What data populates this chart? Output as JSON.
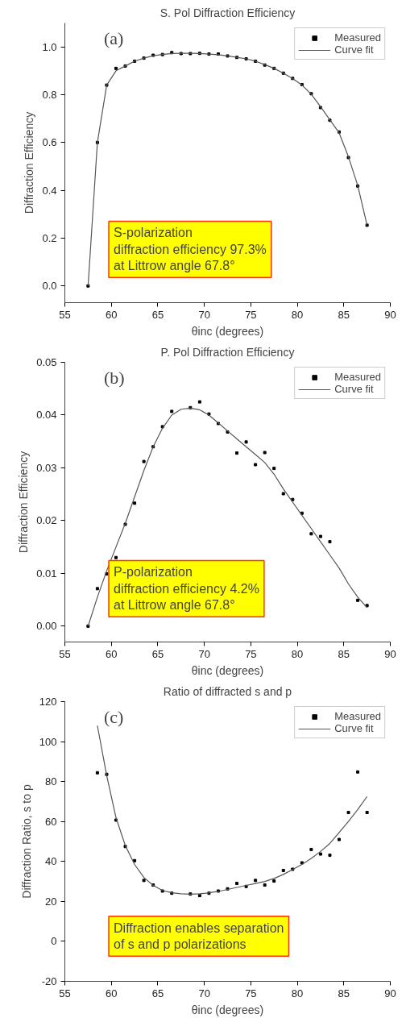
{
  "chart_data": [
    {
      "type": "scatter",
      "title": "S. Pol Diffraction Efficiency",
      "xlabel": "θinc (degrees)",
      "ylabel": "Diffraction Efficiency",
      "annotations": [
        "(a)",
        "S-polarization\ndiffraction efficiency 97.3%\nat Littrow angle 67.8°"
      ],
      "x": [
        57.5,
        58.5,
        59.5,
        60.5,
        61.5,
        62.5,
        63.5,
        64.5,
        65.5,
        66.5,
        67.5,
        68.5,
        69.5,
        70.5,
        71.5,
        72.5,
        73.5,
        74.5,
        75.5,
        76.5,
        77.5,
        78.5,
        79.5,
        80.5,
        81.5,
        82.5,
        83.5,
        84.5,
        85.5,
        86.5,
        87.5
      ],
      "series": [
        {
          "name": "Measured",
          "marker": "square",
          "color": "#000000",
          "values": [
            0.0,
            0.6,
            0.84,
            0.91,
            0.92,
            0.94,
            0.953,
            0.965,
            0.968,
            0.976,
            0.972,
            0.972,
            0.973,
            0.97,
            0.97,
            0.962,
            0.956,
            0.95,
            0.94,
            0.924,
            0.91,
            0.89,
            0.868,
            0.842,
            0.804,
            0.746,
            0.693,
            0.644,
            0.537,
            0.418,
            0.254
          ]
        },
        {
          "name": "Curve fit",
          "type": "line",
          "marker": "none",
          "color": "#555555",
          "values": [
            0.0,
            0.6,
            0.84,
            0.9,
            0.92,
            0.94,
            0.953,
            0.963,
            0.968,
            0.972,
            0.973,
            0.973,
            0.972,
            0.97,
            0.967,
            0.962,
            0.956,
            0.95,
            0.94,
            0.926,
            0.91,
            0.89,
            0.867,
            0.84,
            0.802,
            0.75,
            0.695,
            0.64,
            0.54,
            0.42,
            0.254
          ]
        }
      ],
      "xlim": [
        55,
        90
      ],
      "xticks": [
        55,
        60,
        65,
        70,
        75,
        80,
        85,
        90
      ],
      "ylim": [
        -0.07,
        1.1
      ],
      "yticks": [
        {
          "value": 0,
          "label": "0.0"
        },
        {
          "value": 0.2,
          "label": "0.2"
        },
        {
          "value": 0.4,
          "label": "0.4"
        },
        {
          "value": 0.6,
          "label": "0.6"
        },
        {
          "value": 0.8,
          "label": "0.8"
        },
        {
          "value": 1,
          "label": "1.0"
        }
      ],
      "grid": false,
      "legend": "top right"
    },
    {
      "type": "scatter",
      "title": "P. Pol Diffraction Efficiency",
      "xlabel": "θinc (degrees)",
      "ylabel": "Diffraction Efficiency",
      "annotations": [
        "(b)",
        "P-polarization\ndiffraction efficiency 4.2%\nat Littrow angle 67.8°"
      ],
      "x": [
        57.5,
        58.5,
        59.5,
        60.5,
        61.5,
        62.5,
        63.5,
        64.5,
        65.5,
        66.5,
        67.5,
        68.5,
        69.5,
        70.5,
        71.5,
        72.5,
        73.5,
        74.5,
        75.5,
        76.5,
        77.5,
        78.5,
        79.5,
        80.5,
        81.5,
        82.5,
        83.5,
        84.5,
        85.5,
        86.5,
        87.5
      ],
      "series": [
        {
          "name": "Measured",
          "marker": "square",
          "color": "#000000",
          "values": [
            0.0,
            0.0071,
            0.0099,
            0.013,
            0.0193,
            0.0233,
            0.0312,
            0.034,
            0.0378,
            0.0407,
            null,
            0.0414,
            0.0425,
            0.0402,
            0.0384,
            0.0368,
            0.0328,
            0.0349,
            0.0306,
            0.0329,
            0.0299,
            0.0251,
            0.024,
            0.0214,
            0.0175,
            0.017,
            0.016,
            null,
            null,
            0.0049,
            0.0039
          ]
        },
        {
          "name": "Curve fit",
          "type": "line",
          "marker": "none",
          "color": "#555555",
          "values": [
            0.0,
            0.0055,
            0.0105,
            0.015,
            0.0195,
            0.0245,
            0.0295,
            0.034,
            0.0375,
            0.04,
            0.0411,
            0.0413,
            0.041,
            0.04,
            0.0385,
            0.037,
            0.0355,
            0.034,
            0.0325,
            0.031,
            0.0288,
            0.026,
            0.0235,
            0.021,
            0.0185,
            0.016,
            0.0135,
            0.011,
            0.008,
            0.0055,
            0.0035
          ]
        }
      ],
      "xlim": [
        55,
        90
      ],
      "xticks": [
        55,
        60,
        65,
        70,
        75,
        80,
        85,
        90
      ],
      "ylim": [
        -0.003,
        0.05
      ],
      "yticks": [
        {
          "value": 0,
          "label": "0.00"
        },
        {
          "value": 0.01,
          "label": "0.01"
        },
        {
          "value": 0.02,
          "label": "0.02"
        },
        {
          "value": 0.03,
          "label": "0.03"
        },
        {
          "value": 0.04,
          "label": "0.04"
        },
        {
          "value": 0.05,
          "label": "0.05"
        }
      ],
      "grid": false,
      "legend": "top right"
    },
    {
      "type": "scatter",
      "title": "Ratio of diffracted s and p",
      "xlabel": "θinc (degrees)",
      "ylabel": "Diffraction Ratio, s to p",
      "annotations": [
        "(c)",
        "Diffraction enables separation\nof s and p polarizations"
      ],
      "x": [
        58.5,
        59.5,
        60.5,
        61.5,
        62.5,
        63.5,
        64.5,
        65.5,
        66.5,
        67.5,
        68.5,
        69.5,
        70.5,
        71.5,
        72.5,
        73.5,
        74.5,
        75.5,
        76.5,
        77.5,
        78.5,
        79.5,
        80.5,
        81.5,
        82.5,
        83.5,
        84.5,
        85.5,
        86.5,
        87.5
      ],
      "series": [
        {
          "name": "Measured",
          "marker": "square",
          "color": "#000000",
          "values": [
            84.4,
            83.6,
            60.7,
            47.5,
            40.4,
            30.5,
            28.2,
            25.2,
            24.1,
            null,
            23.7,
            22.9,
            24.1,
            25.2,
            26.3,
            29.0,
            27.5,
            30.5,
            28.2,
            30.2,
            35.5,
            36.1,
            39.3,
            46.0,
            43.7,
            43.1,
            51.0,
            64.5,
            84.8,
            64.5
          ]
        },
        {
          "name": "Curve fit",
          "type": "line",
          "marker": "none",
          "color": "#555555",
          "values": [
            108,
            83,
            62,
            48,
            38.5,
            32,
            28,
            25.5,
            24.3,
            23.8,
            23.6,
            23.8,
            24.3,
            25,
            26,
            27,
            28,
            29,
            30,
            31.5,
            33.5,
            36,
            38.5,
            41.5,
            45,
            49,
            54.5,
            60,
            66,
            72.5
          ]
        }
      ],
      "xlim": [
        55,
        90
      ],
      "xticks": [
        55,
        60,
        65,
        70,
        75,
        80,
        85,
        90
      ],
      "ylim": [
        -20,
        120
      ],
      "yticks": [
        -20,
        0,
        20,
        40,
        60,
        80,
        100,
        120
      ],
      "grid": false,
      "legend": "top right"
    }
  ]
}
